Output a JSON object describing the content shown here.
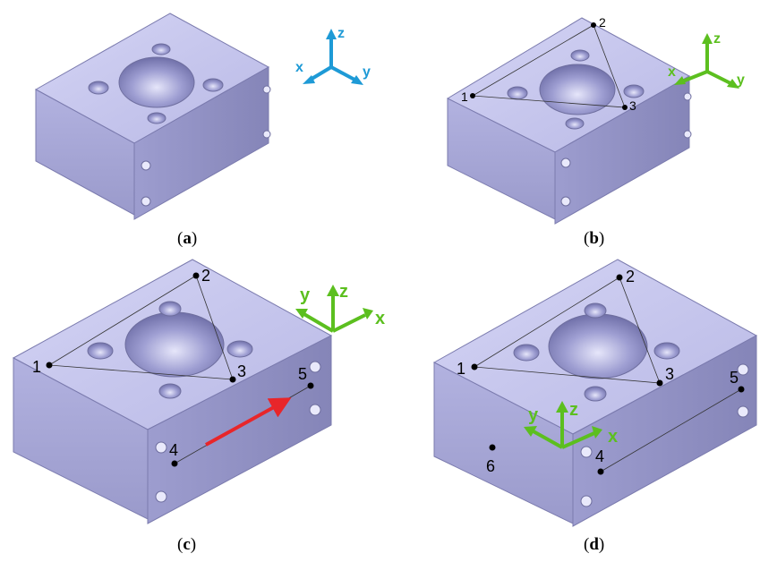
{
  "panels": [
    {
      "id": "a",
      "caption": "a",
      "points": [],
      "axis_labels": {
        "x": "x",
        "y": "y",
        "z": "z"
      },
      "axis_color": "#1e9ad6"
    },
    {
      "id": "b",
      "caption": "b",
      "points": [
        "1",
        "2",
        "3"
      ],
      "axis_labels": {
        "x": "x",
        "y": "y",
        "z": "z"
      },
      "axis_color": "#5cbf1f"
    },
    {
      "id": "c",
      "caption": "c",
      "points": [
        "1",
        "2",
        "3",
        "4",
        "5"
      ],
      "axis_labels": {
        "x": "x",
        "y": "y",
        "z": "z"
      },
      "axis_color": "#5cbf1f",
      "arrow_color": "#e8262a"
    },
    {
      "id": "d",
      "caption": "d",
      "points": [
        "1",
        "2",
        "3",
        "4",
        "5",
        "6"
      ],
      "axis_labels": {
        "x": "x",
        "y": "y",
        "z": "z"
      },
      "axis_color": "#5cbf1f"
    }
  ],
  "colors": {
    "block_top": "#c9c9ef",
    "block_front": "#a7a7d6",
    "block_side": "#9393c6",
    "edge": "#6e6e9e",
    "hole": "#7f7fb8"
  }
}
